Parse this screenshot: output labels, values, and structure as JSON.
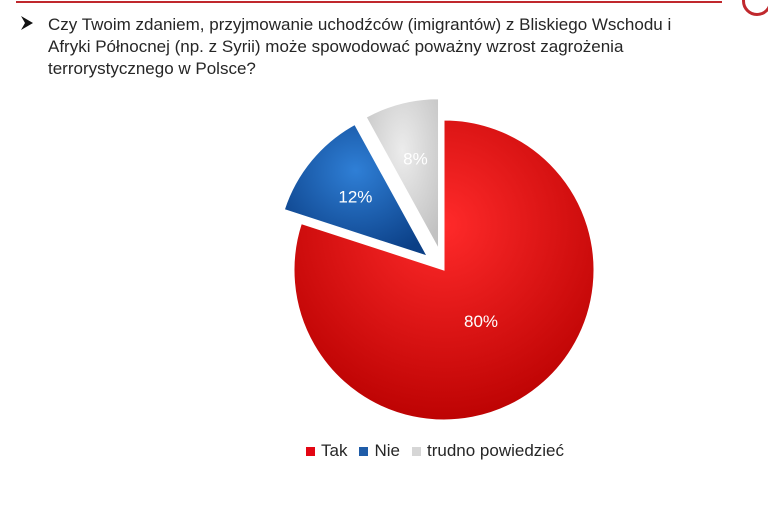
{
  "question": {
    "text": "Czy Twoim zdaniem, przyjmowanie uchodźców (imigrantów) z Bliskiego Wschodu i\nAfryki Północnej (np. z Syrii) może spowodować poważny wzrost zagrożenia\nterrorystycznego w Polsce?",
    "bullet_icon": "arrow-bullet-icon"
  },
  "colors": {
    "accent": "#c0282d",
    "tak": "#e30613",
    "nie": "#1f5ca8",
    "trudno": "#d6d6d6"
  },
  "chart_data": {
    "type": "pie",
    "categories": [
      "Tak",
      "Nie",
      "trudno powiedzieć"
    ],
    "values": [
      80,
      12,
      8
    ],
    "labels": [
      "80%",
      "12%",
      "8%"
    ],
    "exploded": [
      false,
      true,
      true
    ],
    "legend_position": "bottom",
    "title": ""
  }
}
